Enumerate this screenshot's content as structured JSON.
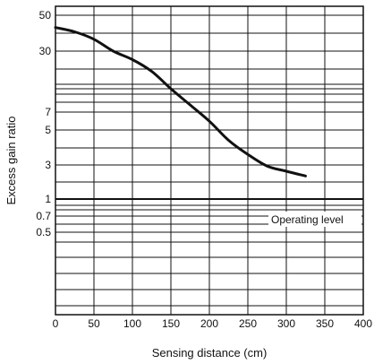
{
  "chart_data": {
    "type": "line",
    "title": "",
    "xlabel": "Sensing distance (cm)",
    "ylabel": "Excess gain ratio",
    "x_ticks": [
      "0",
      "50",
      "100",
      "150",
      "200",
      "250",
      "300",
      "350",
      "400"
    ],
    "xlim": [
      0,
      400
    ],
    "y_ticks": [
      "50",
      "30",
      "7",
      "5",
      "3",
      "1",
      "0.7",
      "0.5"
    ],
    "y_scale": "log",
    "grid": true,
    "series": [
      {
        "x": [
          0,
          25,
          50,
          75,
          100,
          125,
          150,
          175,
          200,
          225,
          250,
          275,
          300,
          325
        ],
        "y": [
          42,
          39.5,
          35.5,
          30,
          24.5,
          18.5,
          12.2,
          8.3,
          5.9,
          4.3,
          3.5,
          2.9,
          2.45,
          2.1
        ]
      }
    ],
    "reference_line": {
      "y": 1,
      "label": "Operating level"
    }
  },
  "colors": {
    "line": "#111111",
    "grid": "#111111",
    "background": "#ffffff"
  }
}
